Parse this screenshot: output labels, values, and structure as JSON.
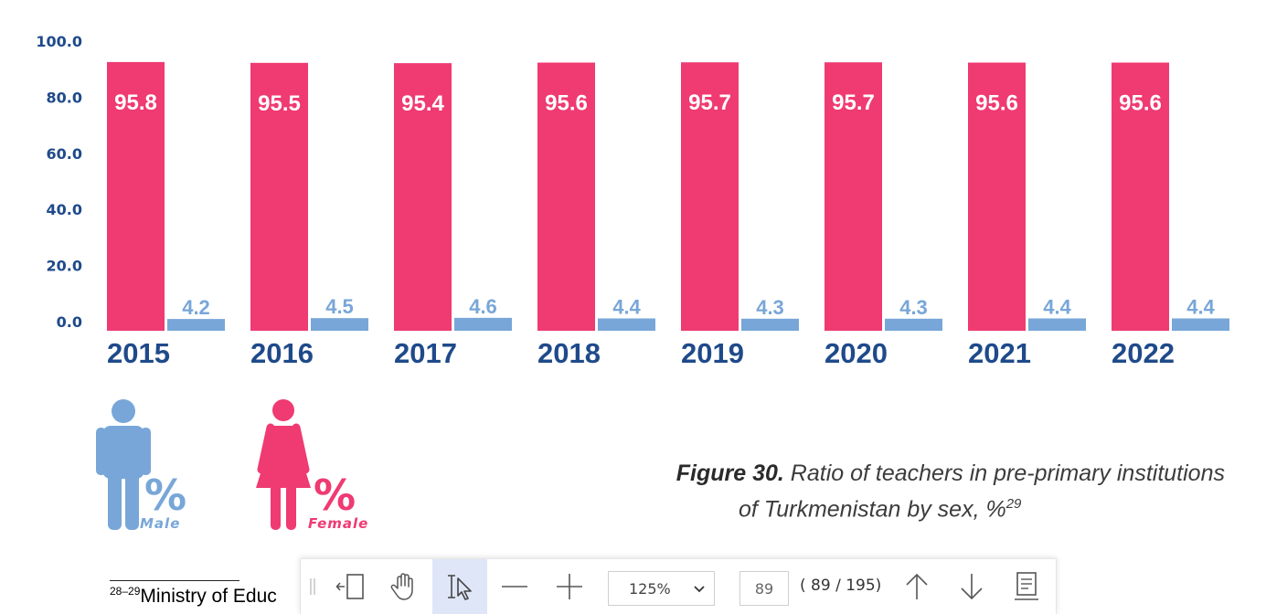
{
  "chart_data": {
    "type": "bar",
    "categories": [
      "2015",
      "2016",
      "2017",
      "2018",
      "2019",
      "2020",
      "2021",
      "2022"
    ],
    "series": [
      {
        "name": "Female",
        "values": [
          95.8,
          95.5,
          95.4,
          95.6,
          95.7,
          95.7,
          95.6,
          95.6
        ],
        "color": "#ef3a72"
      },
      {
        "name": "Male",
        "values": [
          4.2,
          4.5,
          4.6,
          4.4,
          4.3,
          4.3,
          4.4,
          4.4
        ],
        "color": "#78a6d8"
      }
    ],
    "ylim": [
      0,
      100
    ],
    "yticks": [
      "100.0",
      "80.0",
      "60.0",
      "40.0",
      "20.0",
      "0.0"
    ],
    "ytick_values": [
      100,
      80,
      60,
      40,
      20,
      0
    ],
    "data_labels": true,
    "grid": false,
    "axis_color": "#1f4a8a"
  },
  "legend": {
    "male_label": "Male",
    "female_label": "Female",
    "percent_symbol": "%",
    "male_icon": "male-person-icon",
    "female_icon": "female-person-icon"
  },
  "caption": {
    "figure": "Figure 30.",
    "line1": "Ratio of teachers in pre-primary institutions",
    "line2": "of Turkmenistan by sex, %",
    "footnote_ref": "29"
  },
  "footnote": {
    "ref": "28–29",
    "text": "Ministry of Educ"
  },
  "toolbar": {
    "zoom": "125%",
    "page_input": "89",
    "page_count": "( 89 / 195)",
    "icons": [
      "panel-toggle-icon",
      "hand-tool-icon",
      "select-tool-icon",
      "zoom-out-icon",
      "zoom-in-icon",
      "chevron-down-icon",
      "previous-page-icon",
      "next-page-icon",
      "page-options-icon"
    ]
  }
}
